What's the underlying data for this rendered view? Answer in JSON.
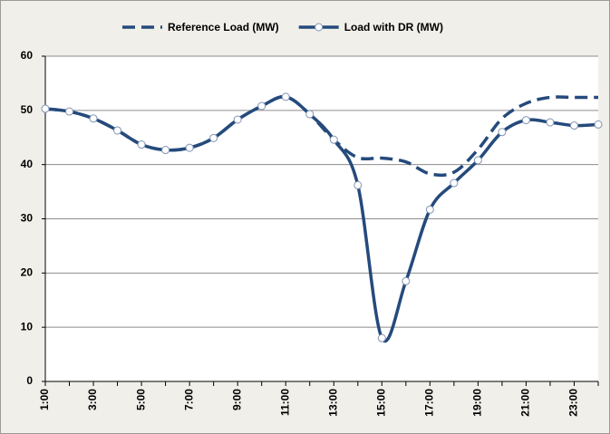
{
  "chart_data": {
    "type": "line",
    "categories": [
      "1:00",
      null,
      "3:00",
      null,
      "5:00",
      null,
      "7:00",
      null,
      "9:00",
      null,
      "11:00",
      null,
      "13:00",
      null,
      "15:00",
      null,
      "17:00",
      null,
      "19:00",
      null,
      "21:00",
      null,
      "23:00",
      null
    ],
    "series": [
      {
        "name": "Reference Load (MW)",
        "color": "#254a7c",
        "dashed": true,
        "markers": false,
        "values": [
          50.3,
          49.8,
          48.5,
          46.3,
          43.7,
          42.7,
          43.1,
          44.9,
          48.3,
          50.8,
          52.5,
          49.3,
          44.6,
          41.3,
          41.2,
          40.5,
          38.3,
          38.6,
          42.8,
          48.5,
          51.3,
          52.4,
          52.4,
          52.4
        ]
      },
      {
        "name": "Load with DR (MW)",
        "color": "#254a7c",
        "dashed": false,
        "markers": true,
        "values": [
          50.3,
          49.8,
          48.5,
          46.3,
          43.7,
          42.7,
          43.1,
          44.9,
          48.3,
          50.8,
          52.5,
          49.3,
          44.6,
          36.2,
          8.0,
          18.5,
          31.7,
          36.6,
          40.8,
          46.0,
          48.2,
          47.8,
          47.2,
          47.4
        ]
      }
    ],
    "ylim": [
      0,
      60
    ],
    "yticks": [
      0,
      10,
      20,
      30,
      40,
      50,
      60
    ],
    "grid": true,
    "legend": "top"
  }
}
